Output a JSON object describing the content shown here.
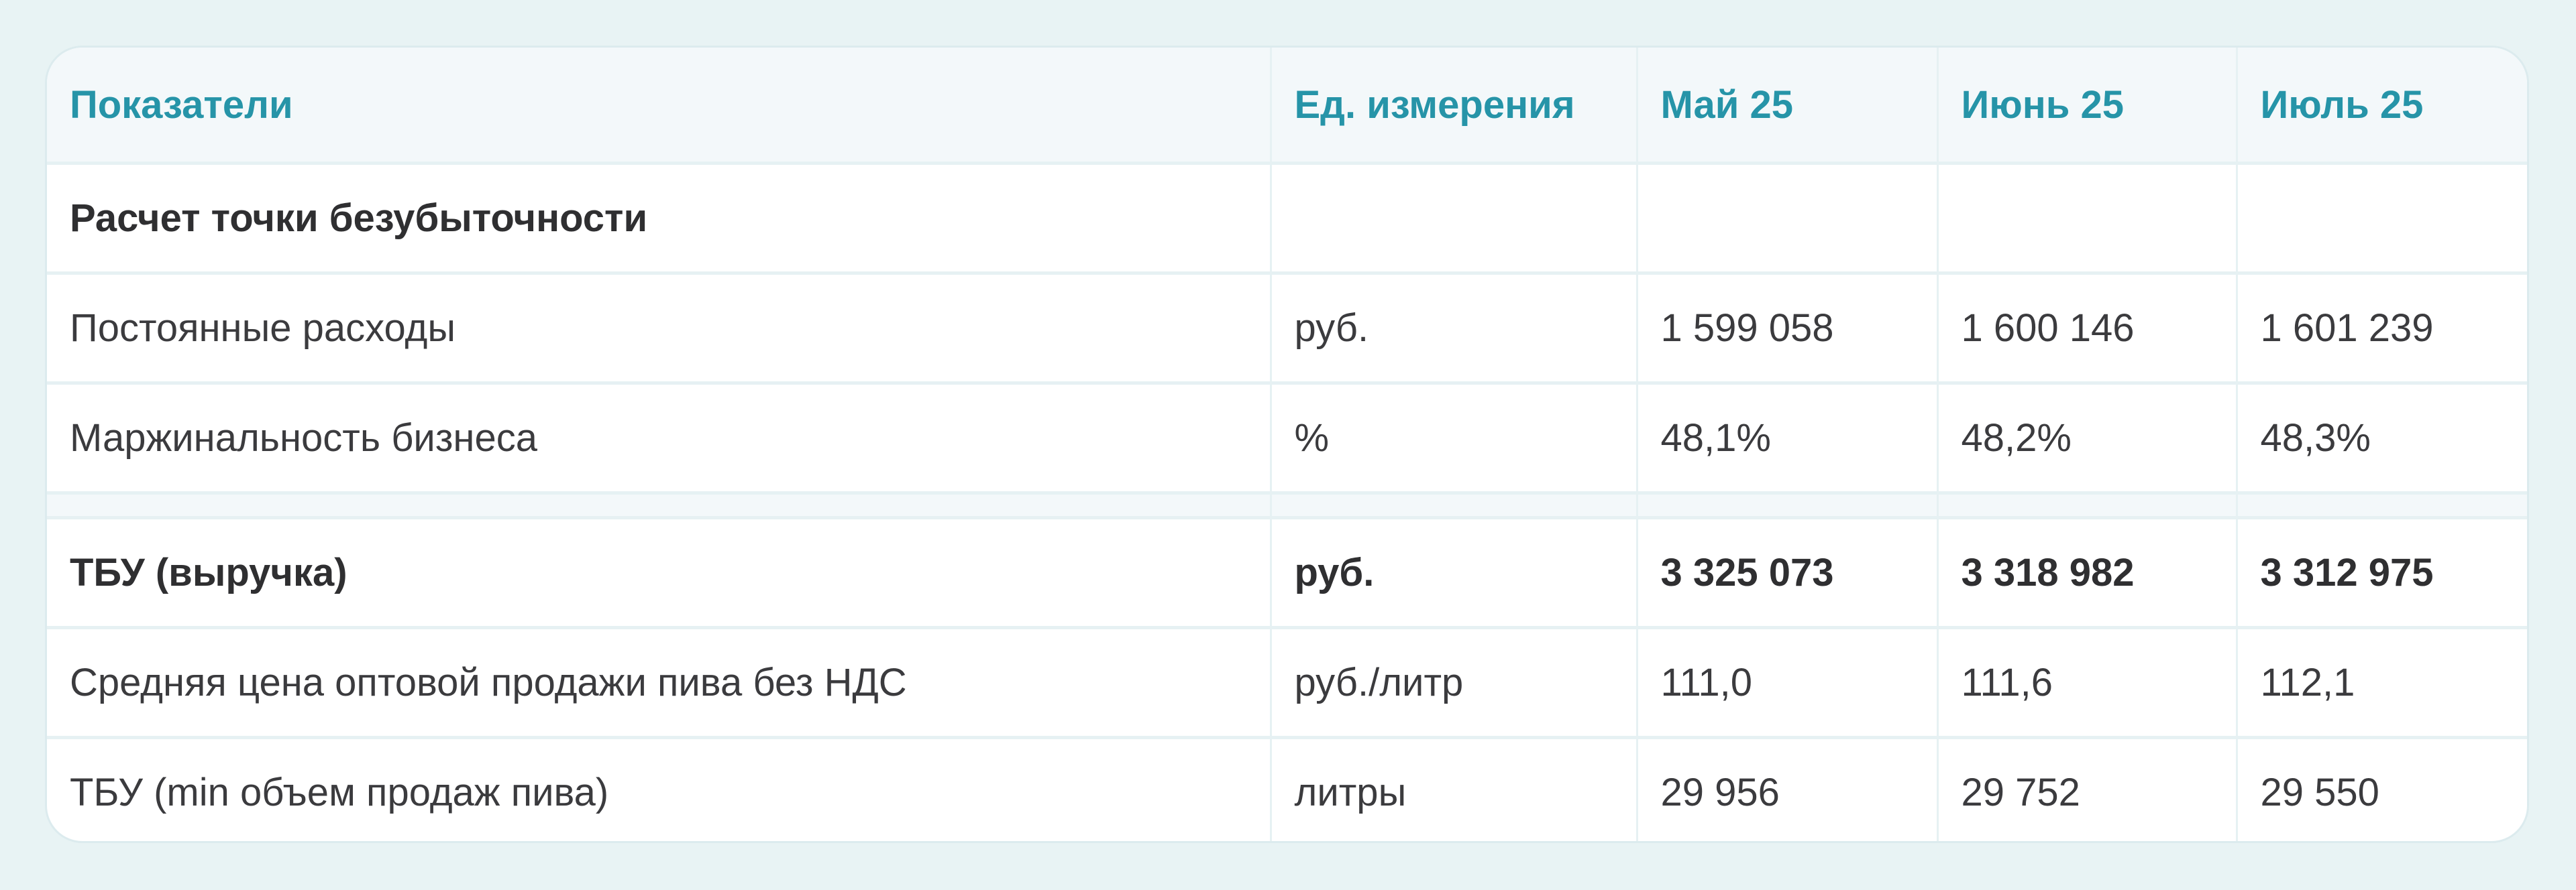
{
  "header": [
    "Показатели",
    "Ед. измерения",
    "Май 25",
    "Июнь 25",
    "Июль 25"
  ],
  "rows": [
    {
      "label": "Расчет точки безубыточности",
      "unit": "",
      "values": [
        "",
        "",
        ""
      ],
      "bold": true
    },
    {
      "label": "Постоянные расходы",
      "unit": "руб.",
      "values": [
        "1 599 058",
        "1 600 146",
        "1 601 239"
      ]
    },
    {
      "label": "Маржинальность бизнеса",
      "unit": "%",
      "values": [
        "48,1%",
        "48,2%",
        "48,3%"
      ]
    },
    {
      "label": "ТБУ (выручка)",
      "unit": "руб.",
      "values": [
        "3 325 073",
        "3 318 982",
        "3 312 975"
      ],
      "bold": true
    },
    {
      "label": "Средняя цена оптовой продажи пива без НДС",
      "unit": "руб./литр",
      "values": [
        "111,0",
        "111,6",
        "112,1"
      ]
    },
    {
      "label": "ТБУ (min объем продаж пива)",
      "unit": "литры",
      "values": [
        "29 956",
        "29 752",
        "29 550"
      ]
    }
  ],
  "colors": {
    "header_text": "#2694a8",
    "background": "#e8f3f4",
    "header_bg": "#f3f8fa"
  }
}
